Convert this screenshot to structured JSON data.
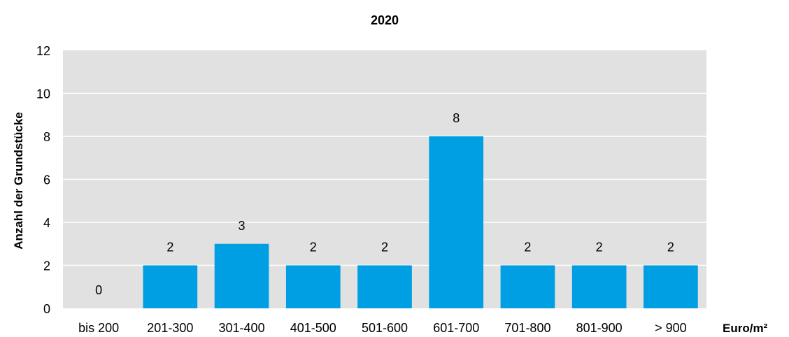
{
  "chart_data": {
    "type": "bar",
    "title": "2020",
    "ylabel": "Anzahl der Grundstücke",
    "xlabel": "Euro/m²",
    "categories": [
      "bis 200",
      "201-300",
      "301-400",
      "401-500",
      "501-600",
      "601-700",
      "701-800",
      "801-900",
      "> 900"
    ],
    "values": [
      0,
      2,
      3,
      2,
      2,
      8,
      2,
      2,
      2
    ],
    "ylim": [
      0,
      12
    ],
    "yticks": [
      0,
      2,
      4,
      6,
      8,
      10,
      12
    ],
    "grid": true,
    "legend": "none",
    "colors": {
      "bar": "#009FE3",
      "plot_background": "#E1E1E1",
      "grid": "#FFFFFF"
    }
  }
}
